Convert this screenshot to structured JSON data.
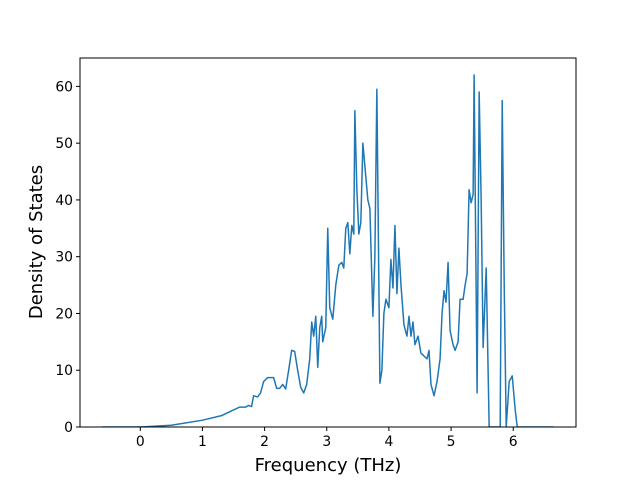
{
  "chart_data": {
    "type": "line",
    "x_label": "Frequency (THz)",
    "y_label": "Density of States",
    "xlim": [
      -0.97,
      7.01
    ],
    "ylim": [
      0,
      65
    ],
    "xticks": [
      0,
      1,
      2,
      3,
      4,
      5,
      6
    ],
    "yticks": [
      0,
      10,
      20,
      30,
      40,
      50,
      60
    ],
    "grid": false,
    "series": [
      {
        "color": "#1f77b4",
        "x": [
          -0.613,
          0,
          0.5,
          1,
          1.306,
          1.5,
          1.597,
          1.694,
          1.742,
          1.79,
          1.823,
          1.887,
          1.935,
          1.984,
          2.048,
          2.145,
          2.194,
          2.242,
          2.29,
          2.339,
          2.387,
          2.435,
          2.484,
          2.532,
          2.581,
          2.629,
          2.677,
          2.726,
          2.758,
          2.79,
          2.823,
          2.855,
          2.887,
          2.919,
          2.935,
          2.984,
          3.016,
          3.048,
          3.097,
          3.145,
          3.194,
          3.242,
          3.274,
          3.306,
          3.339,
          3.371,
          3.403,
          3.435,
          3.452,
          3.484,
          3.516,
          3.548,
          3.581,
          3.629,
          3.661,
          3.694,
          3.742,
          3.774,
          3.806,
          3.855,
          3.887,
          3.919,
          3.952,
          4,
          4.032,
          4.065,
          4.097,
          4.129,
          4.161,
          4.194,
          4.242,
          4.29,
          4.323,
          4.355,
          4.387,
          4.419,
          4.468,
          4.516,
          4.565,
          4.613,
          4.645,
          4.677,
          4.726,
          4.774,
          4.823,
          4.855,
          4.887,
          4.919,
          4.952,
          4.984,
          5.032,
          5.065,
          5.113,
          5.145,
          5.194,
          5.226,
          5.258,
          5.29,
          5.323,
          5.355,
          5.371,
          5.419,
          5.452,
          5.484,
          5.516,
          5.565,
          5.613,
          5.742,
          5.79,
          5.823,
          5.855,
          5.887,
          5.935,
          5.984,
          6.032,
          6.065,
          6.113,
          6.645
        ],
        "values": [
          0,
          0,
          0.3,
          1.2,
          2,
          3,
          3.5,
          3.5,
          3.8,
          3.6,
          5.5,
          5.3,
          6,
          8,
          8.7,
          8.7,
          6.8,
          6.8,
          7.5,
          6.7,
          10,
          13.5,
          13.3,
          10,
          7,
          6,
          7.5,
          12,
          18.5,
          16,
          19.5,
          10.5,
          17.5,
          19.5,
          15,
          17.5,
          35,
          21,
          19,
          25,
          28.5,
          29,
          28,
          35,
          36,
          30.5,
          35.5,
          34,
          55.7,
          42,
          34,
          36,
          50,
          44,
          40,
          38.5,
          19.5,
          30,
          59.5,
          7.7,
          10,
          20,
          22.5,
          21,
          29.5,
          24.5,
          35.5,
          23.5,
          31.5,
          25,
          18,
          16,
          19.5,
          16,
          18.5,
          14.5,
          16,
          13,
          12.5,
          12,
          13.5,
          7.5,
          5.5,
          8,
          12,
          20,
          24,
          22,
          29,
          17,
          14.5,
          13.5,
          15,
          22.5,
          22.5,
          25,
          27,
          41.8,
          39.5,
          41,
          62,
          6,
          59,
          40,
          14,
          28,
          0,
          0,
          0,
          57.5,
          25,
          0,
          8,
          9,
          3,
          0,
          0,
          0
        ]
      }
    ]
  }
}
